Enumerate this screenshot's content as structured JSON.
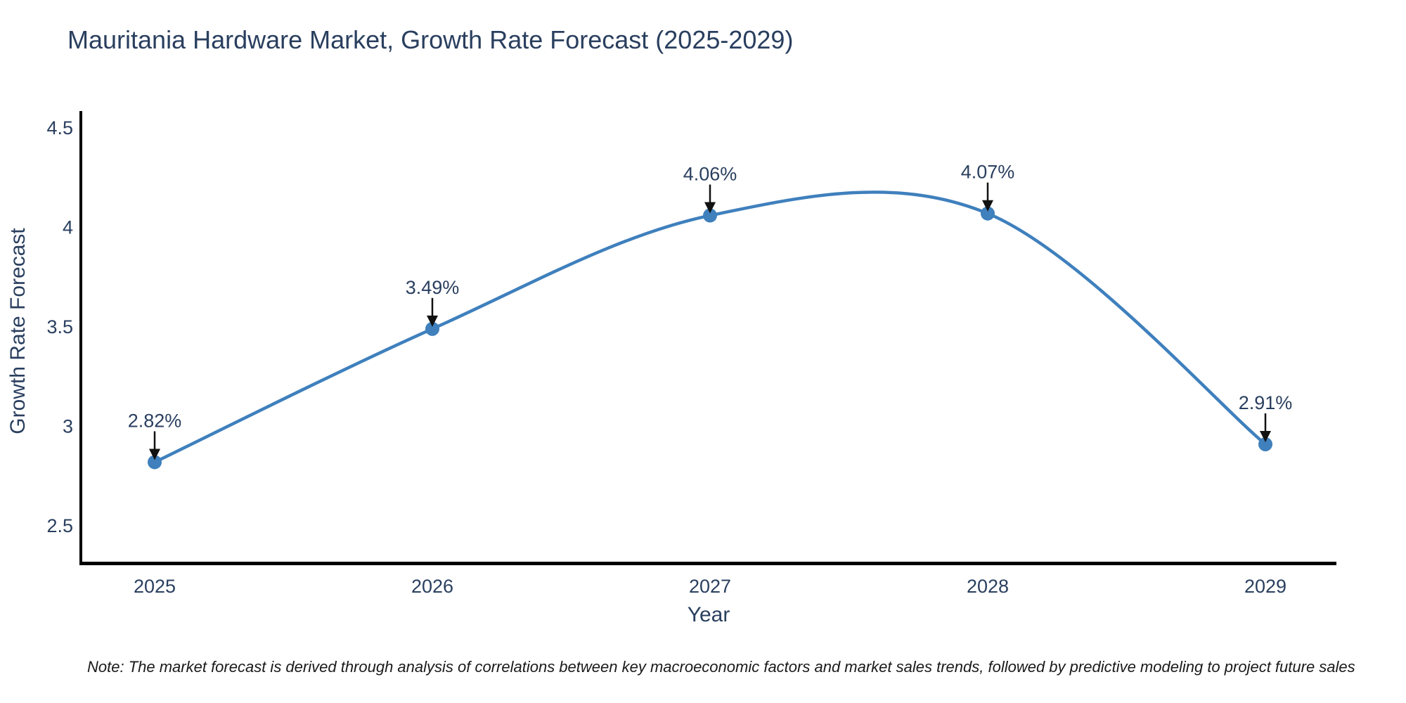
{
  "page": {
    "title": "Mauritania Hardware Market, Growth Rate Forecast (2025-2029)",
    "footnote": "Note: The market forecast is derived through analysis of correlations between key macroeconomic factors and market sales trends, followed by predictive modeling to project future sales"
  },
  "chart_data": {
    "type": "line",
    "title": "Mauritania Hardware Market, Growth Rate Forecast (2025-2029)",
    "xlabel": "Year",
    "ylabel": "Growth Rate Forecast",
    "categories": [
      "2025",
      "2026",
      "2027",
      "2028",
      "2029"
    ],
    "series": [
      {
        "name": "Growth Rate Forecast",
        "values": [
          2.82,
          3.49,
          4.06,
          4.07,
          2.91
        ]
      }
    ],
    "point_labels": [
      "2.82%",
      "3.49%",
      "4.06%",
      "4.07%",
      "2.91%"
    ],
    "y_ticks": [
      "2.5",
      "3",
      "3.5",
      "4",
      "4.5"
    ],
    "y_tick_values": [
      2.5,
      3,
      3.5,
      4,
      4.5
    ],
    "ylim": [
      2.31,
      4.59
    ],
    "line_shape": "spline",
    "grid": false,
    "legend_position": "none",
    "markers": true,
    "annotation_arrows": true,
    "colors": {
      "line": "#3f80bd",
      "marker": "#3f80bd",
      "arrow": "#111111",
      "text": "#2a3f5f",
      "axis": "#000000"
    }
  }
}
